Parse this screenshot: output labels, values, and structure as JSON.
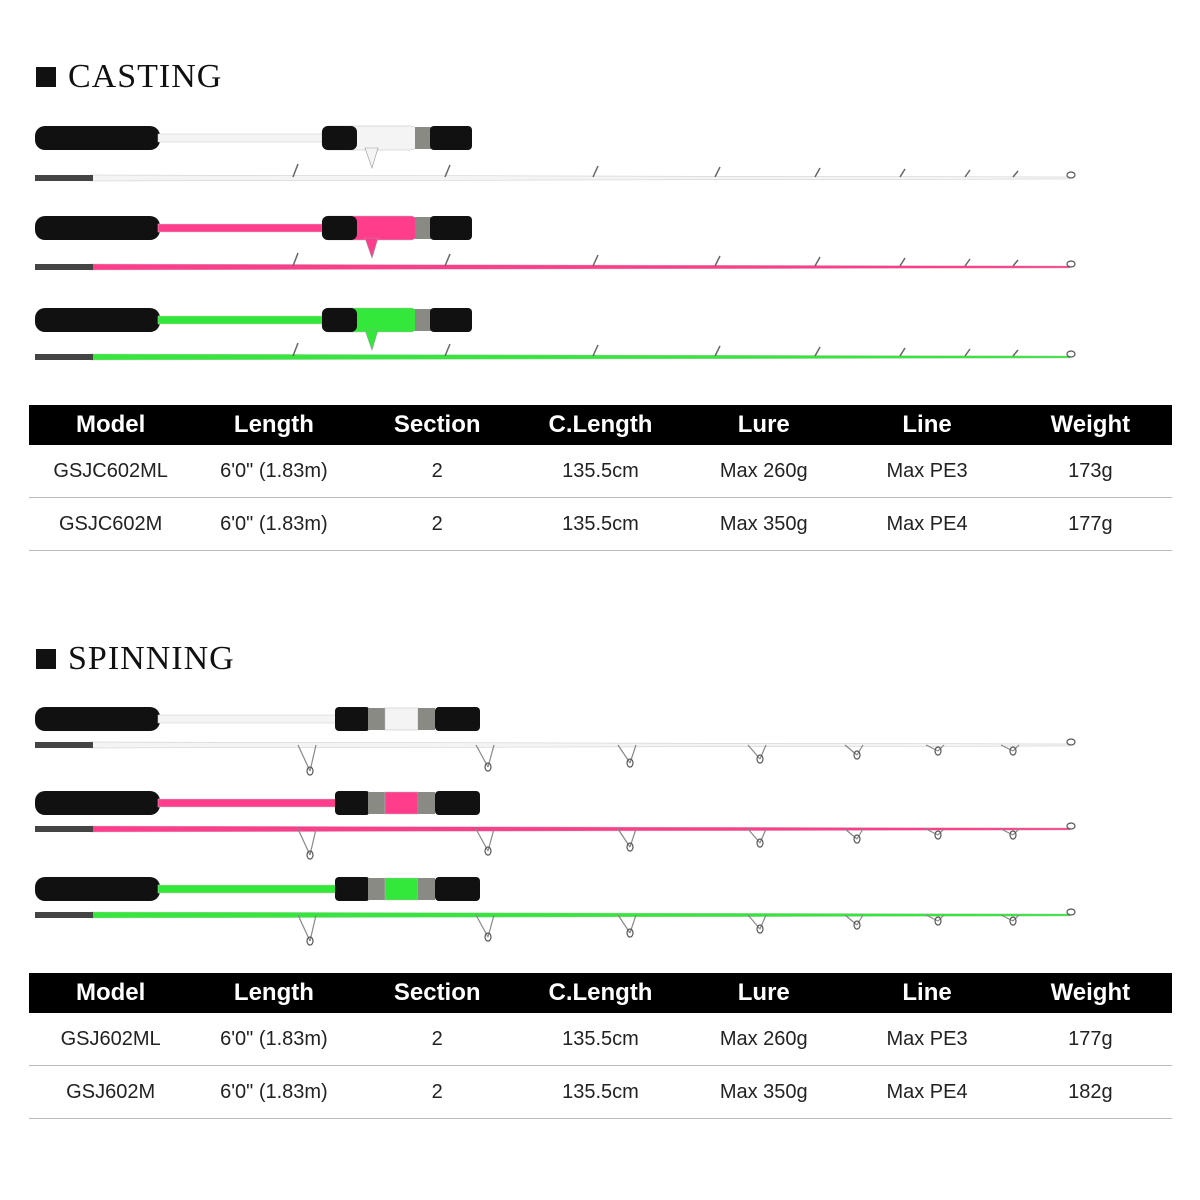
{
  "sections": [
    {
      "title": "CASTING",
      "table": {
        "header": [
          "Model",
          "Length",
          "Section",
          "C.Length",
          "Lure",
          "Line",
          "Weight"
        ],
        "rows": [
          [
            "GSJC602ML",
            "6'0\" (1.83m)",
            "2",
            "135.5cm",
            "Max 260g",
            "Max PE3",
            "173g"
          ],
          [
            "GSJC602M",
            "6'0\" (1.83m)",
            "2",
            "135.5cm",
            "Max 350g",
            "Max PE4",
            "177g"
          ]
        ]
      }
    },
    {
      "title": "SPINNING",
      "table": {
        "header": [
          "Model",
          "Length",
          "Section",
          "C.Length",
          "Lure",
          "Line",
          "Weight"
        ],
        "rows": [
          [
            "GSJ602ML",
            "6'0\" (1.83m)",
            "2",
            "135.5cm",
            "Max 260g",
            "Max PE3",
            "177g"
          ],
          [
            "GSJ602M",
            "6'0\" (1.83m)",
            "2",
            "135.5cm",
            "Max 350g",
            "Max PE4",
            "182g"
          ]
        ]
      }
    }
  ]
}
